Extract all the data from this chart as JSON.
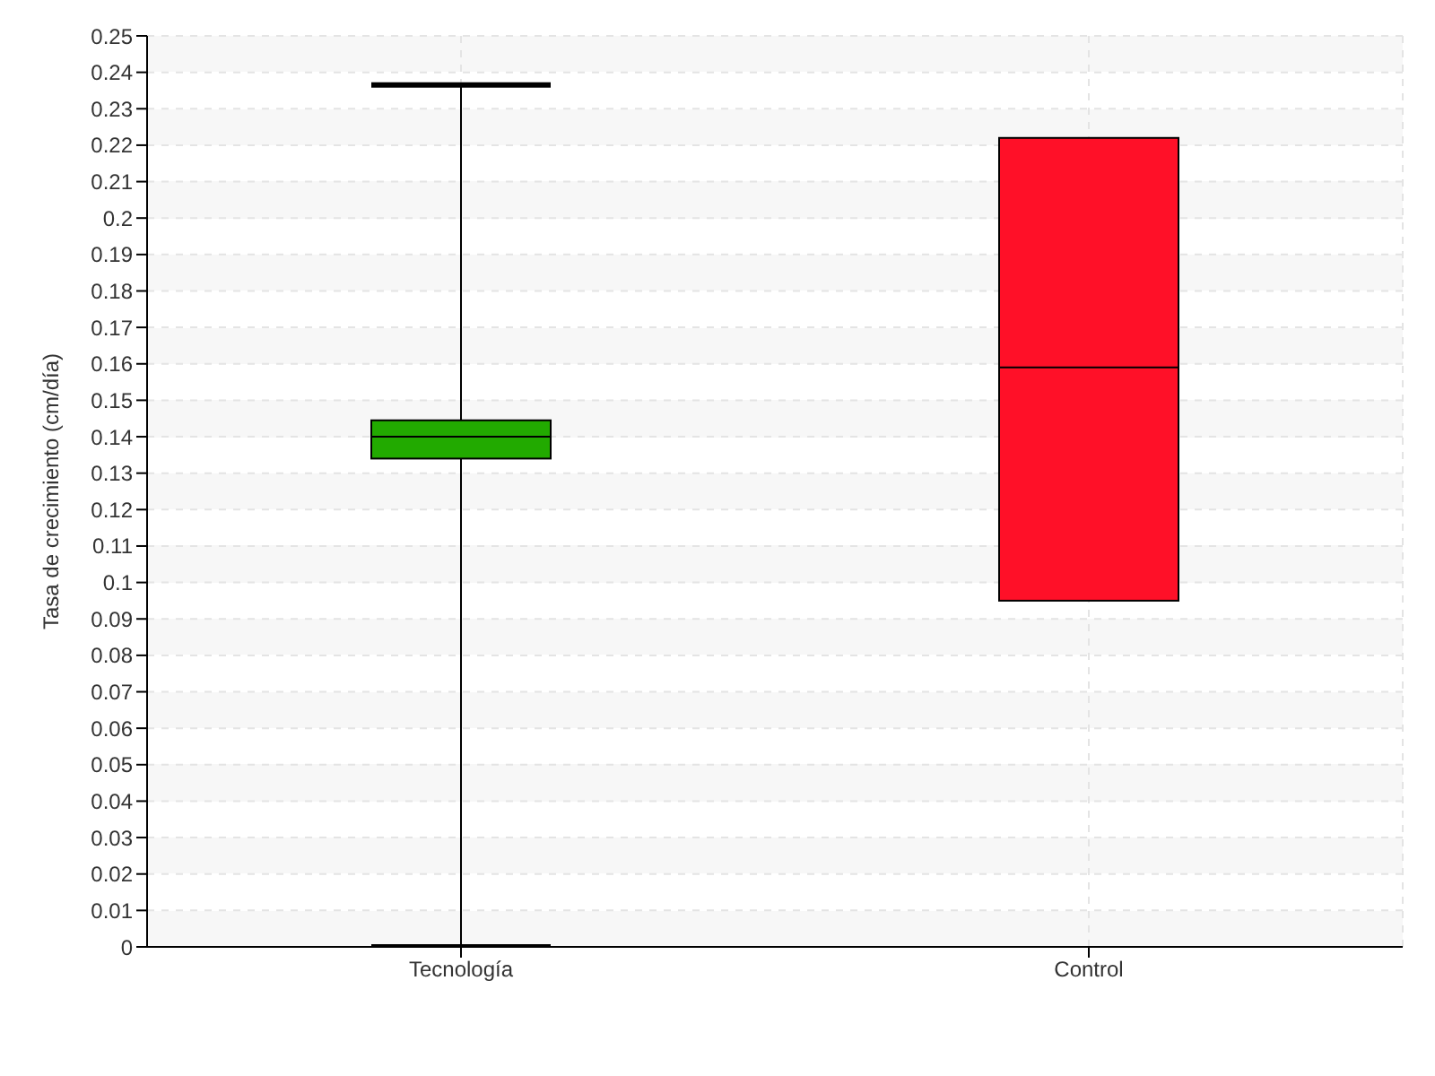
{
  "chart_data": {
    "type": "box",
    "ylabel": "Tasa de crecimiento (cm/día)",
    "categories": [
      "Tecnología",
      "Control"
    ],
    "colors": [
      "#22aa00",
      "#ff1028"
    ],
    "boxes": [
      {
        "low": 0,
        "q1": 0.134,
        "median": 0.14,
        "q3": 0.1445,
        "high": 0.2365
      },
      {
        "low": 0.095,
        "q1": 0.095,
        "median": 0.159,
        "q3": 0.222,
        "high": 0.222
      }
    ],
    "ylim": [
      0,
      0.25
    ],
    "yticks": [
      0,
      0.01,
      0.02,
      0.03,
      0.04,
      0.05,
      0.06,
      0.07,
      0.08,
      0.09,
      0.1,
      0.11,
      0.12,
      0.13,
      0.14,
      0.15,
      0.16,
      0.17,
      0.18,
      0.19,
      0.2,
      0.21,
      0.22,
      0.23,
      0.24,
      0.25
    ],
    "grid": true
  }
}
